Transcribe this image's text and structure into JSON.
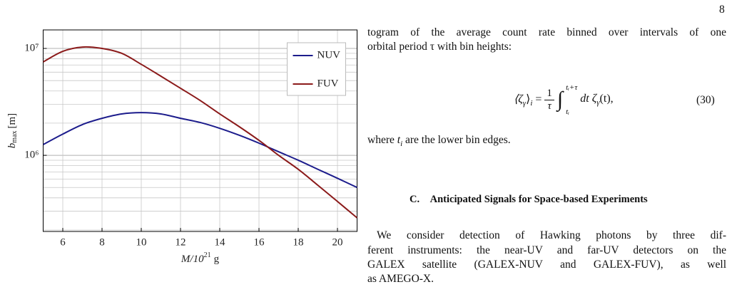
{
  "chart_data": {
    "type": "line",
    "y_label": {
      "main": "b",
      "sub": "max",
      "unit": "[m]"
    },
    "x_label": {
      "main": "M/10",
      "sup": "21",
      "unit": "g"
    },
    "x": [
      5,
      6,
      7,
      8,
      9,
      10,
      11,
      12,
      13,
      14,
      15,
      16,
      17,
      18,
      19,
      20,
      21
    ],
    "series": [
      {
        "name": "NUV",
        "color": "#1c1c8c",
        "values": [
          1260000,
          1580000,
          1940000,
          2220000,
          2440000,
          2510000,
          2440000,
          2220000,
          2030000,
          1790000,
          1540000,
          1300000,
          1080000,
          900000,
          740000,
          610000,
          500000
        ]
      },
      {
        "name": "FUV",
        "color": "#8b1a1a",
        "values": [
          7470000,
          9400000,
          10300000,
          10000000,
          9000000,
          7100000,
          5500000,
          4240000,
          3260000,
          2440000,
          1850000,
          1380000,
          1000000,
          740000,
          525000,
          370000,
          260000
        ]
      }
    ],
    "xlim": [
      5,
      21
    ],
    "xticks": [
      6,
      8,
      10,
      12,
      14,
      16,
      18,
      20
    ],
    "ylim": [
      194000,
      14900000
    ],
    "log_y": true,
    "yticks": [
      {
        "value": 1000000,
        "label": "10⁶"
      },
      {
        "value": 10000000,
        "label": "10⁷"
      }
    ],
    "minor_yticks": [
      200000,
      300000,
      400000,
      500000,
      600000,
      700000,
      800000,
      900000,
      2000000,
      3000000,
      4000000,
      5000000,
      6000000,
      7000000,
      8000000,
      9000000
    ],
    "grid": true,
    "legend": "upper right"
  },
  "text": {
    "page_number": "8",
    "para1": [
      "togram of the average count rate binned over intervals of one",
      "orbital period τ with bin heights:"
    ],
    "equation": {
      "lhs": "⟨ζ",
      "lhs_sub": "γ",
      "lhs_close": "⟩",
      "lhs_close_sub": "i",
      "equals": "=",
      "numerator": "1",
      "denominator": "τ",
      "integral": "∫",
      "upper": "tᵢ+τ",
      "lower": "tᵢ",
      "integrand": "dt ζ",
      "integrand_sub": "γ",
      "integrand_end": "(t),",
      "number": "(30)"
    },
    "where": [
      "where ",
      "t",
      "i",
      " are the lower bin edges."
    ],
    "heading": {
      "number": "C.",
      "title": "Anticipated Signals for Space-based Experiments"
    },
    "para2": [
      "We consider detection of Hawking photons by three dif-",
      "ferent instruments: the near-UV and far-UV detectors on the",
      "GALEX satellite (GALEX-NUV and GALEX-FUV), as well",
      "as AMEGO-X."
    ]
  }
}
